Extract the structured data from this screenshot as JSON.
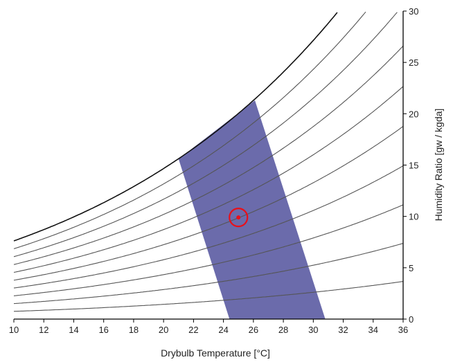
{
  "chart_data": {
    "type": "line",
    "title": "",
    "xlabel": "Drybulb Temperature [°C]",
    "ylabel": "Humidity Ratio [gw / kgda]",
    "xlim": [
      10,
      36
    ],
    "ylim": [
      0,
      30
    ],
    "x_ticks": [
      "10",
      "12",
      "14",
      "16",
      "18",
      "20",
      "22",
      "24",
      "26",
      "28",
      "30",
      "32",
      "34",
      "36"
    ],
    "y_ticks": [
      "0",
      "5",
      "10",
      "15",
      "20",
      "25",
      "30"
    ],
    "y_axis_side": "right",
    "grid": false,
    "legend": "none",
    "relative_humidity_curves": [
      0.1,
      0.2,
      0.3,
      0.4,
      0.5,
      0.6,
      0.7,
      0.8,
      0.9,
      1.0
    ],
    "comfort_zone": {
      "polygon": [
        [
          21.0,
          15.6
        ],
        [
          26.1,
          21.3
        ],
        [
          30.8,
          0
        ],
        [
          24.4,
          0
        ]
      ],
      "color": "#6b6bab"
    },
    "operating_point": {
      "x": 25.0,
      "y": 9.9,
      "color": "#e8101a"
    },
    "colors": {
      "curve": "#555555",
      "saturation": "#111111",
      "axis": "#000000"
    }
  }
}
